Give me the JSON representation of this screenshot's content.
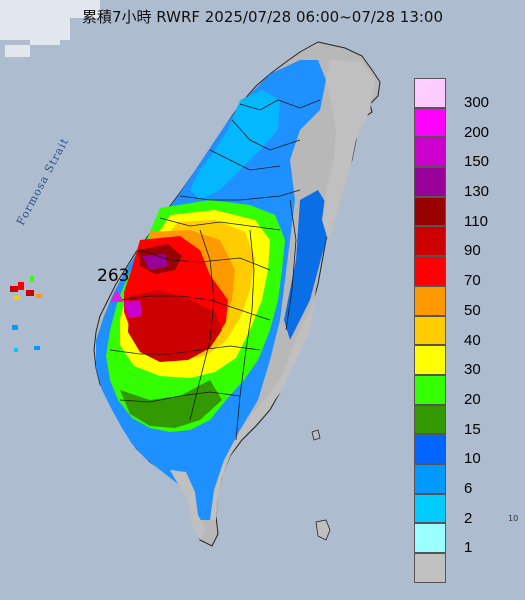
{
  "title": "累積7小時 RWRF 2025/07/28 06:00~07/28 13:00",
  "strait_label": "Formosa Strait",
  "max_value_label": "263",
  "legend": {
    "items": [
      {
        "label": "300",
        "color": "#ffccff"
      },
      {
        "label": "200",
        "color": "#ff00ff"
      },
      {
        "label": "150",
        "color": "#cc00cc"
      },
      {
        "label": "130",
        "color": "#990099"
      },
      {
        "label": "110",
        "color": "#990000"
      },
      {
        "label": "90",
        "color": "#cc0000"
      },
      {
        "label": "70",
        "color": "#ff0000"
      },
      {
        "label": "50",
        "color": "#ff9900"
      },
      {
        "label": "40",
        "color": "#ffcc00"
      },
      {
        "label": "30",
        "color": "#ffff00"
      },
      {
        "label": "20",
        "color": "#33ff00"
      },
      {
        "label": "15",
        "color": "#339900"
      },
      {
        "label": "10",
        "color": "#0066ff"
      },
      {
        "label": "6",
        "color": "#0099ff"
      },
      {
        "label": "2",
        "color": "#00ccff"
      },
      {
        "label": "1",
        "color": "#99ffff"
      },
      {
        "label": "",
        "color": "#c0c0c0"
      }
    ]
  },
  "corner_mark": "10"
}
